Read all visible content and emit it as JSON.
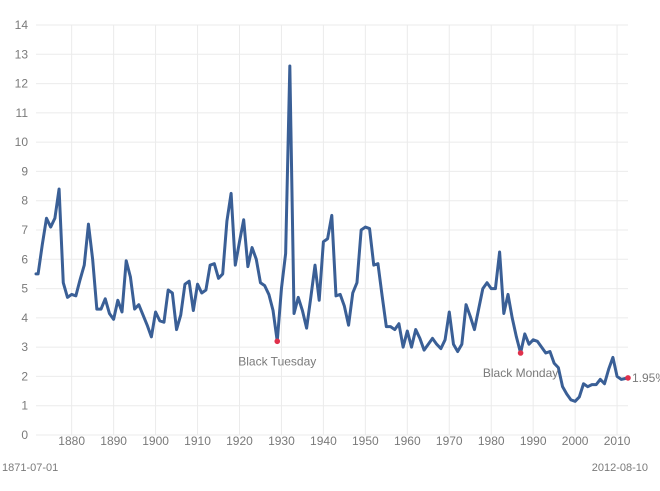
{
  "chart_data": {
    "type": "line",
    "title": "",
    "xlabel": "",
    "ylabel": "",
    "xlim": [
      1871.5,
      2012.6
    ],
    "ylim": [
      0,
      14
    ],
    "grid": true,
    "y_ticks": [
      0,
      1,
      2,
      3,
      4,
      5,
      6,
      7,
      8,
      9,
      10,
      11,
      12,
      13,
      14
    ],
    "x_ticks": [
      1880,
      1890,
      1900,
      1910,
      1920,
      1930,
      1940,
      1950,
      1960,
      1970,
      1980,
      1990,
      2000,
      2010
    ],
    "x_start_label": "1871-07-01",
    "x_end_label": "2012-08-10",
    "colors": {
      "line": "#3a5f96",
      "marker": "#e0304b",
      "grid": "#ebebeb",
      "text": "#7a7a7a"
    },
    "series": [
      {
        "x": [
          1871.5,
          1872,
          1873,
          1874,
          1875,
          1876,
          1877,
          1878,
          1879,
          1880,
          1881,
          1882,
          1883,
          1884,
          1885,
          1886,
          1887,
          1888,
          1889,
          1890,
          1891,
          1892,
          1893,
          1894,
          1895,
          1896,
          1897,
          1898,
          1899,
          1900,
          1901,
          1902,
          1903,
          1904,
          1905,
          1906,
          1907,
          1908,
          1909,
          1910,
          1911,
          1912,
          1913,
          1914,
          1915,
          1916,
          1917,
          1918,
          1919,
          1920,
          1921,
          1922,
          1923,
          1924,
          1925,
          1926,
          1927,
          1928,
          1929,
          1930,
          1931,
          1932,
          1933,
          1934,
          1935,
          1936,
          1937,
          1938,
          1939,
          1940,
          1941,
          1942,
          1943,
          1944,
          1945,
          1946,
          1947,
          1948,
          1949,
          1950,
          1951,
          1952,
          1953,
          1954,
          1955,
          1956,
          1957,
          1958,
          1959,
          1960,
          1961,
          1962,
          1963,
          1964,
          1965,
          1966,
          1967,
          1968,
          1969,
          1970,
          1971,
          1972,
          1973,
          1974,
          1975,
          1976,
          1977,
          1978,
          1979,
          1980,
          1981,
          1982,
          1983,
          1984,
          1985,
          1986,
          1987,
          1988,
          1989,
          1990,
          1991,
          1992,
          1993,
          1994,
          1995,
          1996,
          1997,
          1998,
          1999,
          2000,
          2001,
          2002,
          2003,
          2004,
          2005,
          2006,
          2007,
          2008,
          2009,
          2010,
          2011,
          2012.6
        ],
        "values": [
          5.5,
          5.5,
          6.5,
          7.4,
          7.1,
          7.4,
          8.4,
          5.2,
          4.7,
          4.8,
          4.75,
          5.3,
          5.8,
          7.2,
          6.0,
          4.3,
          4.3,
          4.65,
          4.15,
          3.95,
          4.6,
          4.2,
          5.95,
          5.4,
          4.3,
          4.45,
          4.1,
          3.75,
          3.35,
          4.2,
          3.9,
          3.85,
          4.95,
          4.85,
          3.6,
          4.1,
          5.15,
          5.25,
          4.25,
          5.15,
          4.85,
          4.95,
          5.8,
          5.85,
          5.35,
          5.5,
          7.3,
          8.25,
          5.8,
          6.6,
          7.35,
          5.75,
          6.4,
          6.0,
          5.2,
          5.1,
          4.8,
          4.25,
          3.2,
          5.0,
          6.2,
          12.6,
          4.15,
          4.7,
          4.25,
          3.65,
          4.7,
          5.8,
          4.6,
          6.6,
          6.7,
          7.5,
          4.75,
          4.8,
          4.4,
          3.75,
          4.85,
          5.2,
          7.0,
          7.1,
          7.05,
          5.8,
          5.85,
          4.75,
          3.7,
          3.7,
          3.6,
          3.8,
          3.0,
          3.55,
          3.0,
          3.6,
          3.3,
          2.9,
          3.1,
          3.3,
          3.1,
          2.95,
          3.25,
          4.2,
          3.1,
          2.85,
          3.1,
          4.45,
          4.05,
          3.6,
          4.3,
          5.0,
          5.2,
          5.0,
          5.0,
          6.25,
          4.15,
          4.8,
          4.0,
          3.35,
          2.8,
          3.45,
          3.1,
          3.25,
          3.2,
          3.0,
          2.8,
          2.85,
          2.45,
          2.3,
          1.65,
          1.4,
          1.2,
          1.15,
          1.3,
          1.75,
          1.65,
          1.72,
          1.72,
          1.9,
          1.75,
          2.25,
          2.65,
          2.0,
          1.9,
          1.95
        ]
      }
    ],
    "annotations": [
      {
        "label": "Black Tuesday",
        "x": 1929,
        "y": 3.2
      },
      {
        "label": "Black Monday",
        "x": 1987,
        "y": 2.8
      },
      {
        "label": "1.95%",
        "x": 2012.6,
        "y": 1.95
      }
    ]
  }
}
